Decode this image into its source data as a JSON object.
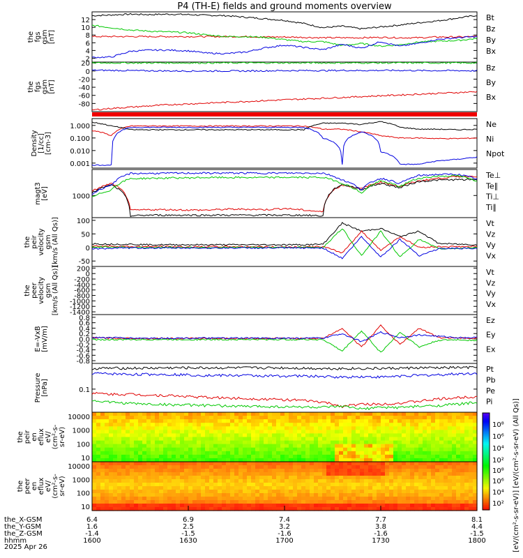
{
  "title": "P4 (TH-E) fields and ground moments overview",
  "date_label": "2025 Apr 26",
  "colors": {
    "black": "#000000",
    "red": "#e00000",
    "green": "#00c800",
    "blue": "#0000e0"
  },
  "chart_data": [
    {
      "type": "line",
      "ylabel": "the fgs gsm [nT]",
      "yticks": [
        "12",
        "10",
        "8",
        "6",
        "4",
        "2"
      ],
      "ylim": [
        1,
        14
      ],
      "legend": [
        "Bt",
        "Bz",
        "By",
        "Bx"
      ],
      "series": [
        {
          "name": "Bt",
          "color": "black",
          "values": [
            13,
            13.2,
            13.4,
            13.3,
            13.4,
            13.3,
            13.1,
            13,
            12.6,
            12.2,
            11.8,
            11,
            9.9,
            10.3,
            9.6,
            10.1,
            10.6,
            11.2,
            11.7,
            12.4,
            13.1
          ]
        },
        {
          "name": "Bz",
          "color": "red",
          "values": [
            7.6,
            7.6,
            7.6,
            7.6,
            7.6,
            7.6,
            7.6,
            7.6,
            7.6,
            7.5,
            7.5,
            7.4,
            7.3,
            7.3,
            7.3,
            7.4,
            7.3,
            7.3,
            7.5,
            7.5,
            7.6
          ]
        },
        {
          "name": "By",
          "color": "green",
          "values": [
            10.5,
            9.9,
            9.3,
            9,
            8.8,
            8.6,
            8,
            7.6,
            7.6,
            7.4,
            6.8,
            6.3,
            6.3,
            5.3,
            5.8,
            5.1,
            5.5,
            6.2,
            6.4,
            6.6,
            7.1
          ]
        },
        {
          "name": "Bx",
          "color": "blue",
          "values": [
            2.2,
            2.3,
            3.8,
            4.1,
            4.1,
            3.9,
            3.3,
            3.2,
            3.6,
            4.7,
            5.4,
            4.8,
            4.2,
            5.6,
            4.6,
            6.3,
            5.1,
            5.9,
            6.9,
            7.3,
            7.6
          ]
        }
      ]
    },
    {
      "type": "line",
      "ylabel": "the fgs gsm [nT]",
      "yticks": [
        "20",
        "0",
        "-20",
        "-40",
        "-60",
        "-80"
      ],
      "ylim": [
        -100,
        22
      ],
      "legend": [
        "Bz",
        "By",
        "Bx"
      ],
      "series": [
        {
          "name": "Bx",
          "color": "blue",
          "values": [
            2,
            1.5,
            1,
            0.5,
            0.2,
            0,
            0,
            0,
            0,
            0.5,
            1,
            1,
            1,
            1.5,
            1.2,
            1.5,
            1.5,
            1,
            1,
            1,
            0.5
          ]
        },
        {
          "name": "By",
          "color": "green",
          "values": [
            20,
            20,
            20,
            20,
            20,
            20,
            20,
            20,
            20,
            20,
            20,
            20,
            20,
            20,
            20,
            20,
            20,
            20,
            20,
            20,
            20
          ]
        },
        {
          "name": "Bz",
          "color": "red",
          "values": [
            -96,
            -92,
            -89,
            -86,
            -83,
            -81,
            -79,
            -77,
            -75,
            -73,
            -71,
            -69,
            -67,
            -65,
            -63,
            -61,
            -59,
            -57,
            -55,
            -53,
            -51
          ]
        }
      ]
    },
    {
      "type": "line",
      "ylabel": "Density [1/cc] [cm-3]",
      "yticks": [
        "1.000",
        "0.100",
        "0.010",
        "0.001"
      ],
      "ylog": true,
      "ylim": [
        0.0004,
        3.5
      ],
      "legend": [
        "Ne",
        "Ni",
        "Npot"
      ],
      "series": [
        {
          "name": "Ne",
          "color": "red",
          "values": [
            0.4,
            0.15,
            0.9,
            0.9,
            0.9,
            0.9,
            0.9,
            0.9,
            0.9,
            0.9,
            0.9,
            0.9,
            0.5,
            0.5,
            0.3,
            0.15,
            0.1,
            0.1,
            0.09,
            0.09,
            0.1
          ]
        },
        {
          "name": "Ni",
          "color": "black",
          "values": [
            1.8,
            0.9,
            0.45,
            0.45,
            0.45,
            0.45,
            0.45,
            0.45,
            0.45,
            0.45,
            0.45,
            0.45,
            1.5,
            1.5,
            1.2,
            2,
            0.7,
            0.5,
            0.5,
            0.45,
            0.5
          ]
        },
        {
          "name": "Npot",
          "color": "blue",
          "values": [
            0.0007,
            0.0007,
            0.7,
            0.7,
            0.7,
            0.7,
            0.7,
            0.7,
            0.7,
            0.7,
            0.7,
            0.7,
            0.1,
            0.0007,
            0.3,
            0.008,
            0.0008,
            0.0008,
            0.0015,
            0.002,
            0.003
          ]
        }
      ]
    },
    {
      "type": "line",
      "ylabel": "magt3 [eV]",
      "yticks": [
        "1000"
      ],
      "ylog": true,
      "ylim": [
        100,
        15000
      ],
      "legend": [
        "Te⊥",
        "Te∥",
        "Ti⊥",
        "Ti∥"
      ],
      "series": [
        {
          "name": "Te⊥",
          "color": "red",
          "values": [
            1500,
            3500,
            210,
            230,
            230,
            220,
            220,
            240,
            240,
            230,
            260,
            220,
            180,
            3000,
            2000,
            4000,
            2500,
            4600,
            6000,
            7200,
            7500
          ]
        },
        {
          "name": "Te∥",
          "color": "black",
          "values": [
            1300,
            3000,
            120,
            130,
            130,
            130,
            130,
            130,
            130,
            130,
            130,
            130,
            120,
            3200,
            1800,
            3500,
            2200,
            4300,
            5000,
            5200,
            5200
          ]
        },
        {
          "name": "Ti⊥",
          "color": "blue",
          "values": [
            1100,
            3000,
            10000,
            10000,
            10200,
            10300,
            10300,
            10300,
            10300,
            10300,
            10300,
            10300,
            10300,
            5000,
            1800,
            6000,
            3500,
            8000,
            9000,
            9000,
            5500
          ]
        },
        {
          "name": "Ti∥",
          "color": "green",
          "values": [
            800,
            1800,
            5800,
            6000,
            6200,
            6300,
            6500,
            6500,
            6500,
            6500,
            6600,
            6600,
            6600,
            3500,
            1200,
            4500,
            2500,
            6000,
            7500,
            7800,
            4500
          ]
        }
      ]
    },
    {
      "type": "line",
      "ylabel": "the peir velocity gsm [km/s (All Qs)]",
      "yticks": [
        "100",
        "50",
        "0",
        "-50"
      ],
      "ylim": [
        -70,
        110
      ],
      "legend": [
        "Vt",
        "Vz",
        "Vy",
        "Vx"
      ],
      "series": [
        {
          "name": "Vt",
          "color": "black",
          "values": [
            14,
            12,
            12,
            10,
            10,
            10,
            10,
            10,
            10,
            10,
            10,
            10,
            12,
            90,
            60,
            70,
            40,
            60,
            15,
            12,
            10
          ]
        },
        {
          "name": "Vz",
          "color": "red",
          "values": [
            5,
            5,
            3,
            3,
            3,
            2,
            3,
            3,
            3,
            2,
            2,
            2,
            3,
            -20,
            60,
            -10,
            40,
            0,
            3,
            3,
            3
          ]
        },
        {
          "name": "Vy",
          "color": "green",
          "values": [
            2,
            2,
            0,
            0,
            0,
            0,
            0,
            0,
            0,
            0,
            0,
            0,
            0,
            70,
            -30,
            60,
            -35,
            30,
            -5,
            -3,
            0
          ]
        },
        {
          "name": "Vx",
          "color": "blue",
          "values": [
            -5,
            -3,
            -2,
            -2,
            -2,
            -2,
            -2,
            -2,
            -2,
            -2,
            -2,
            -2,
            -2,
            -40,
            40,
            -35,
            30,
            -30,
            -5,
            -3,
            -5
          ]
        }
      ]
    },
    {
      "type": "line",
      "ylabel": "the peer velocity gsm [km/s (All Qs)]",
      "yticks": [
        "200",
        "0",
        "-200",
        "-400",
        "-600",
        "-800",
        "-1000",
        "-1200",
        "-1400"
      ],
      "ylim": [
        -1500,
        260
      ],
      "legend": [
        "Vt",
        "Vz",
        "Vy",
        "Vx"
      ],
      "series": []
    },
    {
      "type": "line",
      "ylabel": "E=-VxB [mV/m]",
      "yticks": [
        "0.8",
        "0.6",
        "0.4",
        "0.2",
        "0.0",
        "-0.2",
        "-0.4",
        "-0.6",
        "-0.8"
      ],
      "ylim": [
        -0.9,
        0.9
      ],
      "legend": [
        "Ez",
        "Ey",
        "Ex"
      ],
      "series": [
        {
          "name": "Ez",
          "color": "red",
          "values": [
            0.05,
            0.03,
            0.03,
            0.02,
            0.02,
            0.02,
            0.02,
            0.02,
            0.02,
            0.02,
            0.02,
            0.02,
            0.02,
            0.4,
            -0.3,
            0.5,
            -0.2,
            0.4,
            0.05,
            0.03,
            0.03
          ]
        },
        {
          "name": "Ey",
          "color": "green",
          "values": [
            -0.02,
            -0.03,
            -0.02,
            -0.02,
            -0.02,
            -0.02,
            -0.02,
            -0.02,
            -0.02,
            -0.02,
            -0.02,
            -0.02,
            -0.02,
            -0.45,
            0.3,
            -0.5,
            0.25,
            -0.3,
            -0.05,
            -0.03,
            -0.05
          ]
        },
        {
          "name": "Ex",
          "color": "blue",
          "values": [
            0.05,
            0.05,
            0.03,
            0.03,
            0.03,
            0.03,
            0.03,
            0.03,
            0.03,
            0.03,
            0.03,
            0.03,
            0.03,
            0.2,
            -0.1,
            0.25,
            0.05,
            0.15,
            0.1,
            0.05,
            0.05
          ]
        }
      ]
    },
    {
      "type": "line",
      "ylabel": "Pressure [nPa]",
      "yticks": [
        "0.1"
      ],
      "ylog": true,
      "ylim": [
        0.02,
        0.6
      ],
      "legend": [
        "Pt",
        "Pb",
        "Pe",
        "Pi"
      ],
      "series": [
        {
          "name": "Pt",
          "color": "black",
          "values": [
            0.42,
            0.43,
            0.43,
            0.43,
            0.44,
            0.44,
            0.44,
            0.44,
            0.44,
            0.44,
            0.44,
            0.43,
            0.42,
            0.42,
            0.42,
            0.42,
            0.43,
            0.44,
            0.44,
            0.45,
            0.45
          ]
        },
        {
          "name": "Pb",
          "color": "blue",
          "values": [
            0.3,
            0.29,
            0.28,
            0.28,
            0.28,
            0.27,
            0.26,
            0.26,
            0.26,
            0.25,
            0.25,
            0.25,
            0.24,
            0.23,
            0.24,
            0.23,
            0.25,
            0.26,
            0.27,
            0.29,
            0.3
          ]
        },
        {
          "name": "Pe",
          "color": "red",
          "values": [
            0.075,
            0.07,
            0.07,
            0.066,
            0.064,
            0.06,
            0.056,
            0.054,
            0.052,
            0.05,
            0.048,
            0.045,
            0.04,
            0.03,
            0.035,
            0.035,
            0.038,
            0.043,
            0.05,
            0.055,
            0.06
          ]
        },
        {
          "name": "Pi",
          "color": "green",
          "values": [
            0.045,
            0.04,
            0.037,
            0.035,
            0.034,
            0.033,
            0.032,
            0.031,
            0.03,
            0.03,
            0.029,
            0.029,
            0.028,
            0.03,
            0.025,
            0.028,
            0.028,
            0.03,
            0.032,
            0.035,
            0.04
          ]
        }
      ]
    },
    {
      "type": "heatmap",
      "ylabel": "the peir en eflux eV/(cm²-s-sr-eV)",
      "yticks": [
        "10000",
        "1000",
        "100",
        "10"
      ],
      "ylog": true,
      "ylim": [
        5,
        20000
      ]
    },
    {
      "type": "heatmap",
      "ylabel": "the peer en eflux eV/(cm²-s-sr-eV)",
      "yticks": [
        "10000",
        "1000",
        "100",
        "10"
      ],
      "ylog": true,
      "ylim": [
        5,
        20000
      ]
    }
  ],
  "colorbar": {
    "ticks": [
      "10⁸",
      "10⁶",
      "10⁴",
      "10²",
      "10⁸",
      "10⁶",
      "10⁴",
      "10²"
    ],
    "label": "[eV/(cm²-s-sr-eV)] [eV/(cm²-s-sr-eV) (All Qs)]"
  },
  "xaxis": {
    "rows": [
      {
        "label": "the_X-GSM",
        "values": [
          "6.4",
          "6.9",
          "7.4",
          "7.7",
          "8.1"
        ]
      },
      {
        "label": "the_Y-GSM",
        "values": [
          "1.6",
          "2.5",
          "3.2",
          "3.8",
          "4.4"
        ]
      },
      {
        "label": "the_Z-GSM",
        "values": [
          "-1.4",
          "-1.5",
          "-1.6",
          "-1.6",
          "-1.5"
        ]
      },
      {
        "label": "hhmm",
        "values": [
          "1600",
          "1630",
          "1700",
          "1730",
          "1800"
        ]
      }
    ]
  }
}
